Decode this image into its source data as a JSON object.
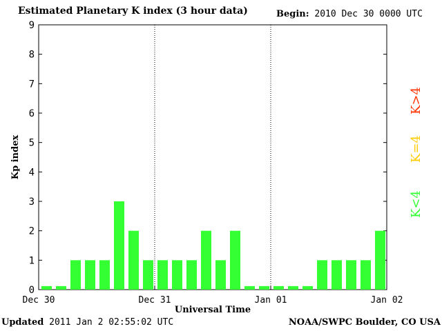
{
  "header": {
    "title": "Estimated Planetary K index (3 hour data)",
    "begin_label": "Begin:",
    "begin_value": "2010 Dec 30 0000 UTC"
  },
  "footer": {
    "updated_label": "Updated",
    "updated_value": "2011 Jan  2 02:55:02 UTC",
    "source": "NOAA/SWPC Boulder, CO USA"
  },
  "legend": {
    "items": [
      {
        "label": "K<4",
        "color": "#33ff33"
      },
      {
        "label": "K=4",
        "color": "#ffcc00"
      },
      {
        "label": "K>4",
        "color": "#ff3300"
      }
    ]
  },
  "chart_data": {
    "type": "bar",
    "xlabel": "Universal Time",
    "ylabel": "Kp index",
    "ylim": [
      0,
      9
    ],
    "yticks": [
      0,
      1,
      2,
      3,
      4,
      5,
      6,
      7,
      8,
      9
    ],
    "xtick_labels": [
      "Dec 30",
      "Dec 31",
      "Jan 01",
      "Jan 02"
    ],
    "day_dividers": [
      "Dec 31",
      "Jan 01"
    ],
    "grid": false,
    "bar_color": "#33ff33",
    "values": [
      0,
      0,
      1,
      1,
      1,
      3,
      2,
      1,
      1,
      1,
      1,
      2,
      1,
      2,
      0,
      0,
      0,
      0,
      0,
      1,
      1,
      1,
      1,
      2
    ]
  }
}
